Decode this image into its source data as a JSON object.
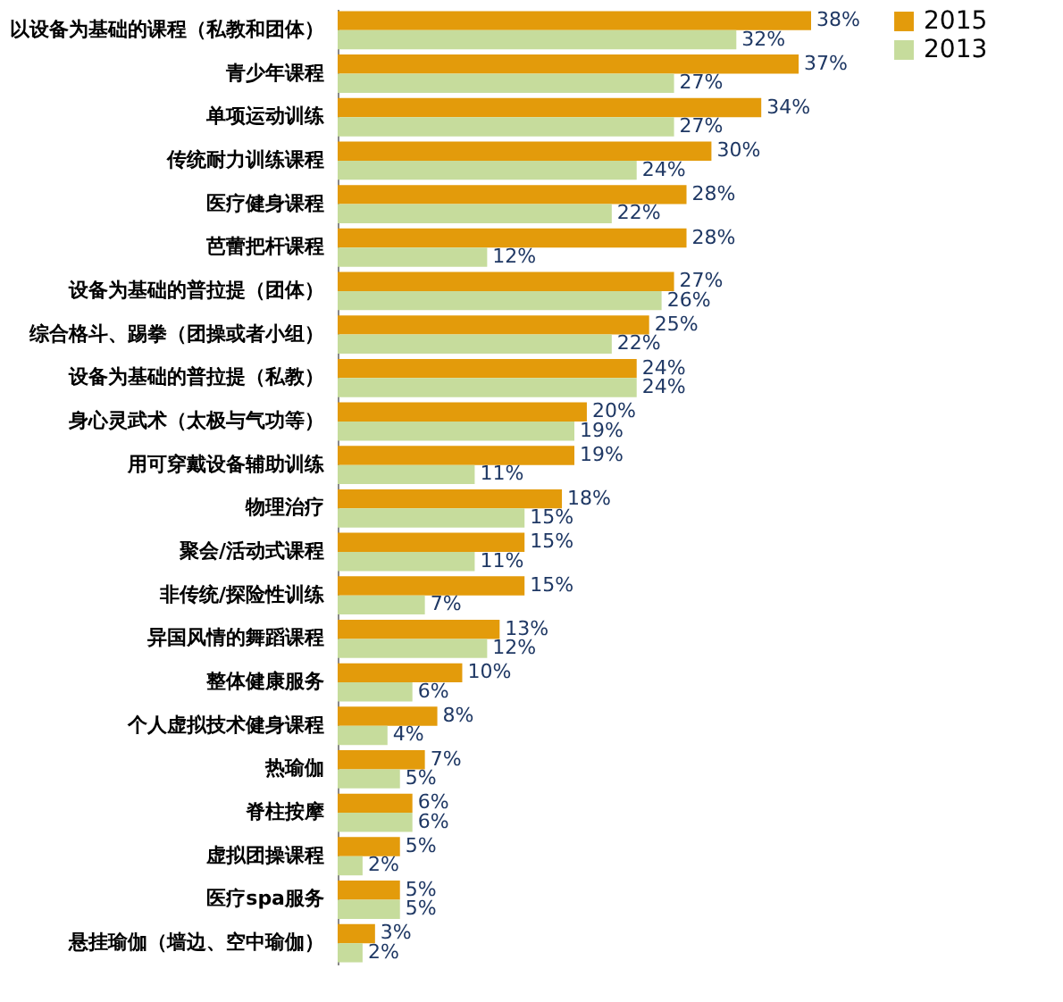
{
  "chart_data": {
    "type": "bar",
    "orientation": "horizontal",
    "legend": "right",
    "grid": false,
    "categories": [
      "以设备为基础的课程（私教和团体）",
      "青少年课程",
      "单项运动训练",
      "传统耐力训练课程",
      "医疗健身课程",
      "芭蕾把杆课程",
      "设备为基础的普拉提（团体）",
      "综合格斗、踢拳（团操或者小组）",
      "设备为基础的普拉提（私教）",
      "身心灵武术（太极与气功等）",
      "用可穿戴设备辅助训练",
      "物理治疗",
      "聚会/活动式课程",
      "非传统/探险性训练",
      "异国风情的舞蹈课程",
      "整体健康服务",
      "个人虚拟技术健身课程",
      "热瑜伽",
      "脊柱按摩",
      "虚拟团操课程",
      "医疗spa服务",
      "悬挂瑜伽（墙边、空中瑜伽）"
    ],
    "series": [
      {
        "name": "2015",
        "color": "#e39b0b",
        "values": [
          38,
          37,
          34,
          30,
          28,
          28,
          27,
          25,
          24,
          20,
          19,
          18,
          15,
          15,
          13,
          10,
          8,
          7,
          6,
          5,
          5,
          3
        ],
        "value_labels": [
          "38%",
          "37%",
          "34%",
          "30%",
          "28%",
          "28%",
          "27%",
          "25%",
          "24%",
          "20%",
          "19%",
          "18%",
          "15%",
          "15%",
          "13%",
          "10%",
          "8%",
          "7%",
          "6%",
          "5%",
          "5%",
          "3%"
        ]
      },
      {
        "name": "2013",
        "color": "#c6dc9c",
        "values": [
          32,
          27,
          27,
          24,
          22,
          12,
          26,
          22,
          24,
          19,
          11,
          15,
          11,
          7,
          12,
          6,
          4,
          5,
          6,
          2,
          5,
          2
        ],
        "value_labels": [
          "32%",
          "27%",
          "27%",
          "24%",
          "22%",
          "12%",
          "26%",
          "22%",
          "24%",
          "19%",
          "11%",
          "15%",
          "11%",
          "7%",
          "12%",
          "6%",
          "4%",
          "5%",
          "6%",
          "2%",
          "5%",
          "2%"
        ]
      }
    ]
  }
}
